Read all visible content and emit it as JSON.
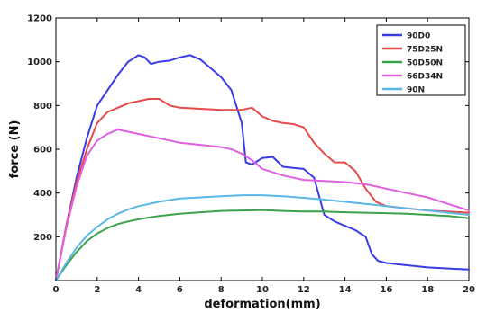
{
  "chart_data": {
    "type": "line",
    "xlabel": "deformation(mm)",
    "ylabel": "force (N)",
    "xlim": [
      0,
      20
    ],
    "ylim": [
      0,
      1200
    ],
    "xticks": [
      0,
      2,
      4,
      6,
      8,
      10,
      12,
      14,
      16,
      18,
      20
    ],
    "yticks": [
      200,
      400,
      600,
      800,
      1000,
      1200
    ],
    "grid": false,
    "legend_position": "top-right",
    "series": [
      {
        "name": "90D0",
        "color": "#3b3be6",
        "x": [
          0,
          0.5,
          1,
          1.5,
          2,
          2.5,
          3,
          3.5,
          4,
          4.3,
          4.6,
          5,
          5.5,
          6,
          6.5,
          7,
          7.5,
          8,
          8.5,
          9,
          9.2,
          9.5,
          10,
          10.5,
          11,
          11.5,
          12,
          12.5,
          13,
          13.5,
          14,
          14.5,
          15,
          15.3,
          15.6,
          16,
          17,
          18,
          19,
          20
        ],
        "y": [
          0,
          250,
          470,
          650,
          800,
          870,
          940,
          1000,
          1030,
          1020,
          990,
          1000,
          1005,
          1020,
          1030,
          1010,
          970,
          930,
          870,
          720,
          540,
          530,
          560,
          565,
          520,
          515,
          510,
          470,
          300,
          270,
          250,
          230,
          200,
          120,
          90,
          80,
          70,
          60,
          55,
          50
        ]
      },
      {
        "name": "75D25N",
        "color": "#e64a4a",
        "x": [
          0,
          0.5,
          1,
          1.5,
          2,
          2.5,
          3,
          3.5,
          4,
          4.5,
          5,
          5.5,
          6,
          7,
          8,
          9,
          9.5,
          10,
          10.5,
          11,
          11.5,
          12,
          12.5,
          13,
          13.5,
          14,
          14.5,
          15,
          15.5,
          16,
          17,
          18,
          19,
          20
        ],
        "y": [
          0,
          250,
          450,
          600,
          720,
          770,
          790,
          810,
          820,
          830,
          830,
          800,
          790,
          785,
          780,
          780,
          790,
          750,
          730,
          720,
          715,
          700,
          630,
          580,
          540,
          540,
          500,
          420,
          360,
          340,
          330,
          320,
          315,
          310
        ]
      },
      {
        "name": "50D50N",
        "color": "#3aa24a",
        "x": [
          0,
          0.5,
          1,
          1.5,
          2,
          2.5,
          3,
          3.5,
          4,
          5,
          6,
          7,
          8,
          9,
          10,
          11,
          12,
          13,
          14,
          15,
          16,
          17,
          18,
          19,
          20
        ],
        "y": [
          0,
          70,
          130,
          180,
          215,
          240,
          258,
          270,
          280,
          295,
          305,
          312,
          318,
          320,
          322,
          318,
          315,
          315,
          312,
          310,
          308,
          305,
          300,
          295,
          285
        ]
      },
      {
        "name": "66D34N",
        "color": "#e060e0",
        "x": [
          0,
          0.5,
          1,
          1.5,
          2,
          2.5,
          3,
          3.5,
          4,
          5,
          6,
          7,
          8,
          8.5,
          9,
          9.5,
          10,
          11,
          12,
          13,
          14,
          15,
          16,
          17,
          18,
          19,
          20
        ],
        "y": [
          0,
          240,
          430,
          570,
          640,
          670,
          690,
          680,
          670,
          650,
          630,
          620,
          610,
          600,
          580,
          550,
          510,
          480,
          460,
          455,
          450,
          440,
          420,
          400,
          380,
          350,
          320
        ]
      },
      {
        "name": "90N",
        "color": "#5ab6e6",
        "x": [
          0,
          0.5,
          1,
          1.5,
          2,
          2.5,
          3,
          3.5,
          4,
          5,
          6,
          7,
          8,
          9,
          10,
          11,
          12,
          13,
          14,
          15,
          16,
          17,
          18,
          19,
          20
        ],
        "y": [
          0,
          80,
          150,
          205,
          245,
          280,
          305,
          325,
          340,
          360,
          375,
          380,
          385,
          390,
          390,
          385,
          378,
          370,
          360,
          350,
          340,
          330,
          320,
          310,
          300
        ]
      }
    ]
  }
}
